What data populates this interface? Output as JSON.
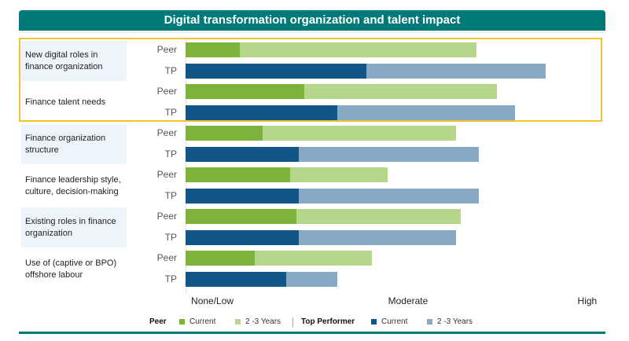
{
  "chart_data": {
    "type": "bar",
    "orientation": "horizontal",
    "stacked": true,
    "title": "Digital transformation organization and talent impact",
    "xlabel": "",
    "ylabel": "",
    "x_scale_unit": "percent of axis span (None/Low to High)",
    "xlim": [
      0,
      100
    ],
    "x_tick_labels": [
      {
        "label": "None/Low",
        "value": 6.5
      },
      {
        "label": "Moderate",
        "value": 54
      },
      {
        "label": "High",
        "value": 97.5
      }
    ],
    "highlighted_groups": [
      "New digital roles in finance organization",
      "Finance talent needs"
    ],
    "groups": [
      {
        "label": "New digital roles in finance organization",
        "shaded": true,
        "rows": [
          {
            "label": "Peer",
            "current": 13.2,
            "total": 70.6
          },
          {
            "label": "TP",
            "current": 43.9,
            "total": 87.4
          }
        ]
      },
      {
        "label": "Finance talent needs",
        "shaded": false,
        "rows": [
          {
            "label": "Peer",
            "current": 28.8,
            "total": 75.6
          },
          {
            "label": "TP",
            "current": 36.8,
            "total": 80.0
          }
        ]
      },
      {
        "label": "Finance organization structure",
        "shaded": true,
        "rows": [
          {
            "label": "Peer",
            "current": 18.7,
            "total": 65.6
          },
          {
            "label": "TP",
            "current": 27.5,
            "total": 71.2
          }
        ]
      },
      {
        "label": "Finance leadership style, culture, decision-making",
        "shaded": false,
        "rows": [
          {
            "label": "Peer",
            "current": 25.4,
            "total": 49.0
          },
          {
            "label": "TP",
            "current": 27.5,
            "total": 71.2
          }
        ]
      },
      {
        "label": "Existing roles in finance organization",
        "shaded": true,
        "rows": [
          {
            "label": "Peer",
            "current": 26.9,
            "total": 66.8
          },
          {
            "label": "TP",
            "current": 27.5,
            "total": 65.6
          }
        ]
      },
      {
        "label": "Use of (captive or BPO) offshore labour",
        "shaded": false,
        "rows": [
          {
            "label": "Peer",
            "current": 16.8,
            "total": 45.2
          },
          {
            "label": "TP",
            "current": 24.4,
            "total": 36.8
          }
        ]
      }
    ],
    "series": [
      {
        "name": "Peer Current",
        "color": "#7db33c"
      },
      {
        "name": "Peer 2 -3 Years",
        "color": "#b6d68c"
      },
      {
        "name": "Top Performer Current",
        "color": "#125688"
      },
      {
        "name": "Top Performer 2 -3 Years",
        "color": "#87a9c4"
      }
    ],
    "legend": {
      "position": "bottom",
      "peer_heading": "Peer",
      "tp_heading": "Top Performer",
      "current_label": "Current",
      "future_label": "2 -3 Years"
    }
  },
  "colors": {
    "title_bg": "#007a78",
    "highlight_border": "#f2c230",
    "label_shade": "#eef4fb"
  }
}
